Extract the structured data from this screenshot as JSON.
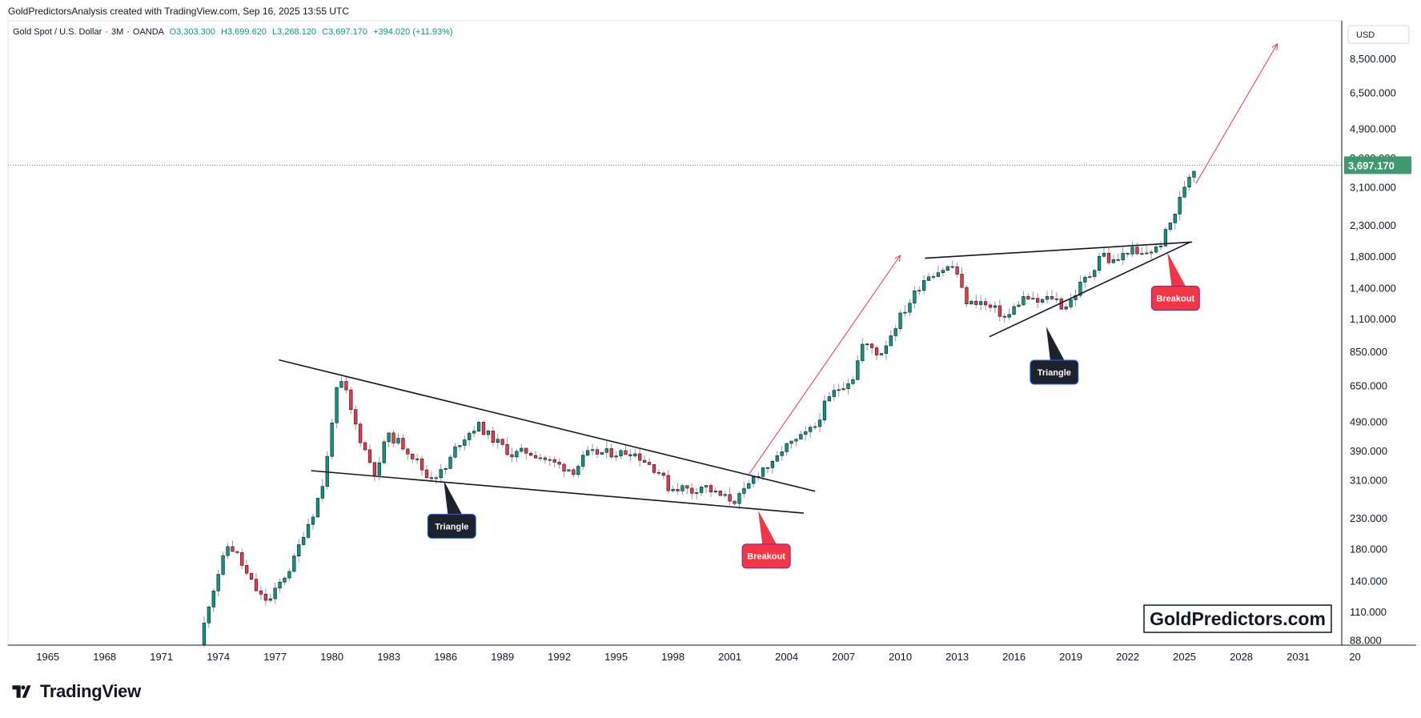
{
  "attribution": "GoldPredictorsAnalysis created with TradingView.com, Sep 16, 2025 13:55 UTC",
  "symbol_line": {
    "symbol": "Gold Spot / U.S. Dollar",
    "interval": "3M",
    "source": "OANDA",
    "open": "O3,303.300",
    "high": "H3,699.620",
    "low": "L3,268.120",
    "close": "C3,697.170",
    "change": "+394.020 (+11.93%)"
  },
  "currency_label": "USD",
  "last_price_label": "3,697.170",
  "watermark": "GoldPredictors.com",
  "brand": "TradingView",
  "colors": {
    "up": "#089981",
    "down": "#f23645",
    "price_tag": "#3d9970",
    "callout_breakout": "#f23645",
    "callout_triangle": "#1e222d",
    "trend_arrow": "#f23645"
  },
  "chart_data": {
    "type": "candlestick",
    "yscale": "log",
    "ylim": [
      85,
      11500
    ],
    "xlim": [
      1962.9,
      2033.3
    ],
    "yticks": [
      88,
      110,
      140,
      180,
      230,
      310,
      390,
      490,
      650,
      850,
      1100,
      1400,
      1800,
      2300,
      3100,
      3900,
      4900,
      6500,
      8500
    ],
    "ytick_labels": [
      "88.000",
      "110.000",
      "140.000",
      "180.000",
      "230.000",
      "310.000",
      "390.000",
      "490.000",
      "650.000",
      "850.000",
      "1,100.000",
      "1,400.000",
      "1,800.000",
      "2,300.000",
      "3,100.000",
      "3,900.000",
      "4,900.000",
      "6,500.000",
      "8,500.000"
    ],
    "xticks": [
      "1965",
      "1968",
      "1971",
      "1974",
      "1977",
      "1980",
      "1983",
      "1986",
      "1989",
      "1992",
      "1995",
      "1998",
      "2001",
      "2004",
      "2007",
      "2010",
      "2013",
      "2016",
      "2019",
      "2022",
      "2025",
      "2028",
      "2031",
      "20"
    ],
    "last_price": 3697.17,
    "waypoints": [
      [
        1973.0,
        85
      ],
      [
        1973.5,
        118
      ],
      [
        1974.0,
        150
      ],
      [
        1974.5,
        185
      ],
      [
        1974.9,
        178
      ],
      [
        1975.5,
        148
      ],
      [
        1976.2,
        125
      ],
      [
        1976.7,
        120
      ],
      [
        1977.3,
        140
      ],
      [
        1977.9,
        160
      ],
      [
        1978.5,
        205
      ],
      [
        1979.0,
        240
      ],
      [
        1979.5,
        300
      ],
      [
        1979.9,
        420
      ],
      [
        1980.1,
        600
      ],
      [
        1980.6,
        680
      ],
      [
        1980.9,
        560
      ],
      [
        1981.5,
        430
      ],
      [
        1982.0,
        360
      ],
      [
        1982.4,
        320
      ],
      [
        1982.8,
        440
      ],
      [
        1983.3,
        430
      ],
      [
        1983.9,
        400
      ],
      [
        1984.5,
        360
      ],
      [
        1985.0,
        320
      ],
      [
        1985.6,
        325
      ],
      [
        1986.0,
        340
      ],
      [
        1986.6,
        410
      ],
      [
        1987.2,
        450
      ],
      [
        1987.7,
        480
      ],
      [
        1988.3,
        440
      ],
      [
        1988.9,
        410
      ],
      [
        1989.5,
        380
      ],
      [
        1990.2,
        390
      ],
      [
        1990.8,
        380
      ],
      [
        1991.5,
        360
      ],
      [
        1992.2,
        345
      ],
      [
        1992.8,
        335
      ],
      [
        1993.4,
        380
      ],
      [
        1994.0,
        385
      ],
      [
        1994.6,
        385
      ],
      [
        1995.2,
        385
      ],
      [
        1995.8,
        390
      ],
      [
        1996.2,
        375
      ],
      [
        1996.8,
        350
      ],
      [
        1997.3,
        330
      ],
      [
        1997.8,
        290
      ],
      [
        1998.4,
        295
      ],
      [
        1999.0,
        285
      ],
      [
        1999.6,
        300
      ],
      [
        2000.2,
        280
      ],
      [
        2000.8,
        270
      ],
      [
        2001.3,
        265
      ],
      [
        2001.8,
        285
      ],
      [
        2002.3,
        320
      ],
      [
        2002.8,
        345
      ],
      [
        2003.3,
        350
      ],
      [
        2003.8,
        400
      ],
      [
        2004.3,
        415
      ],
      [
        2004.9,
        440
      ],
      [
        2005.5,
        475
      ],
      [
        2006.0,
        560
      ],
      [
        2006.5,
        620
      ],
      [
        2007.0,
        660
      ],
      [
        2007.5,
        700
      ],
      [
        2008.0,
        900
      ],
      [
        2008.5,
        880
      ],
      [
        2008.9,
        830
      ],
      [
        2009.4,
        950
      ],
      [
        2009.9,
        1100
      ],
      [
        2010.4,
        1230
      ],
      [
        2010.9,
        1400
      ],
      [
        2011.4,
        1560
      ],
      [
        2011.9,
        1600
      ],
      [
        2012.4,
        1650
      ],
      [
        2012.9,
        1670
      ],
      [
        2013.2,
        1400
      ],
      [
        2013.6,
        1230
      ],
      [
        2014.1,
        1280
      ],
      [
        2014.6,
        1210
      ],
      [
        2015.1,
        1180
      ],
      [
        2015.6,
        1100
      ],
      [
        2016.1,
        1230
      ],
      [
        2016.6,
        1320
      ],
      [
        2017.1,
        1250
      ],
      [
        2017.6,
        1280
      ],
      [
        2018.1,
        1320
      ],
      [
        2018.6,
        1200
      ],
      [
        2019.1,
        1300
      ],
      [
        2019.6,
        1480
      ],
      [
        2020.1,
        1580
      ],
      [
        2020.6,
        1890
      ],
      [
        2021.1,
        1710
      ],
      [
        2021.6,
        1780
      ],
      [
        2022.1,
        1920
      ],
      [
        2022.6,
        1800
      ],
      [
        2023.1,
        1880
      ],
      [
        2023.6,
        1920
      ],
      [
        2024.1,
        2230
      ],
      [
        2024.6,
        2630
      ],
      [
        2025.1,
        3300
      ],
      [
        2025.6,
        3697
      ]
    ],
    "patterns": [
      {
        "kind": "triangle",
        "label": "Triangle",
        "upper": [
          [
            1977.2,
            800
          ],
          [
            2005.5,
            285
          ]
        ],
        "lower": [
          [
            1978.9,
            335
          ],
          [
            2004.9,
            240
          ]
        ]
      },
      {
        "kind": "triangle",
        "label": "Triangle",
        "upper": [
          [
            2011.3,
            1780
          ],
          [
            2025.4,
            2020
          ]
        ],
        "lower": [
          [
            2014.7,
            960
          ],
          [
            2025.3,
            2020
          ]
        ]
      }
    ],
    "callouts": [
      {
        "label": "Triangle",
        "kind": "triangle",
        "anchor": [
          1985.9,
          310
        ]
      },
      {
        "label": "Breakout",
        "kind": "breakout",
        "anchor": [
          2002.5,
          245
        ]
      },
      {
        "label": "Triangle",
        "kind": "triangle",
        "anchor": [
          2017.7,
          1040
        ]
      },
      {
        "label": "Breakout",
        "kind": "breakout",
        "anchor": [
          2024.1,
          1860
        ]
      }
    ],
    "arrows": [
      {
        "from": [
          2002.0,
          325
        ],
        "to": [
          2010.0,
          1820
        ]
      },
      {
        "from": [
          2025.6,
          3200
        ],
        "to": [
          2029.9,
          9600
        ]
      }
    ]
  }
}
